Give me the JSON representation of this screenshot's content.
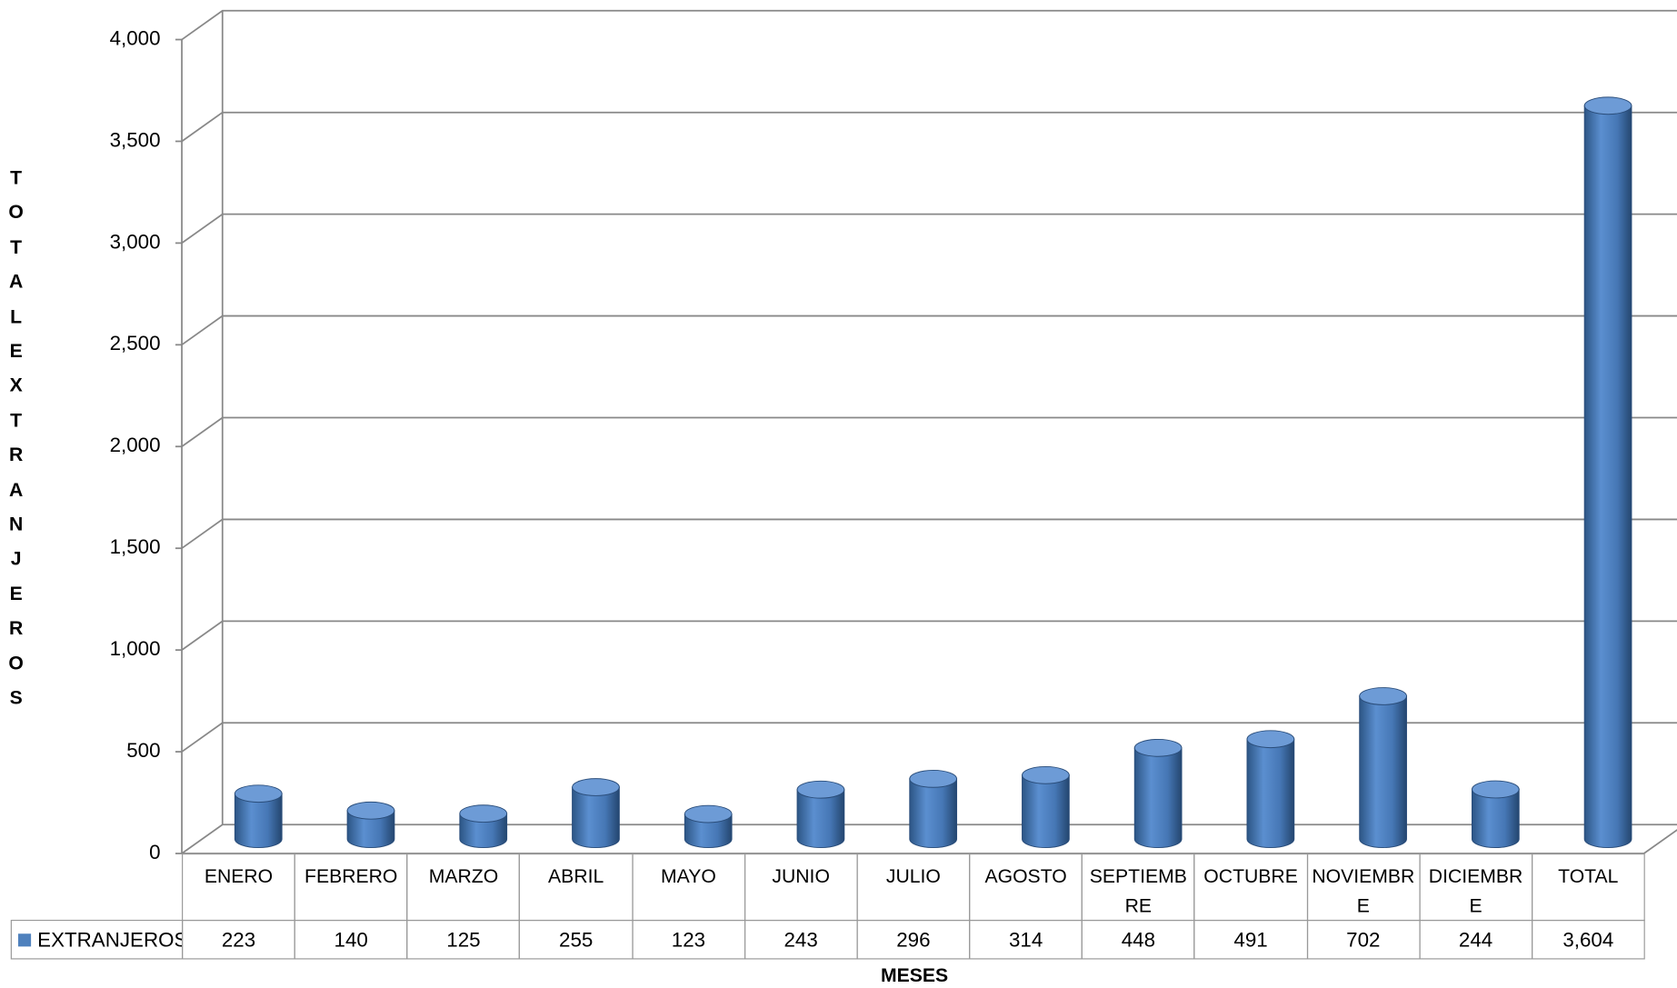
{
  "chart_data": {
    "type": "bar",
    "y_label": "TOTAL EXTRANJEROS",
    "x_label": "MESES",
    "categories": [
      "ENERO",
      "FEBRERO",
      "MARZO",
      "ABRIL",
      "MAYO",
      "JUNIO",
      "JULIO",
      "AGOSTO",
      "SEPTIEMBRE",
      "OCTUBRE",
      "NOVIEMBRE",
      "DICIEMBRE",
      "TOTAL"
    ],
    "series": [
      {
        "name": "EXTRANJEROS",
        "color": "#4f81bd",
        "values": [
          223,
          140,
          125,
          255,
          123,
          243,
          296,
          314,
          448,
          491,
          702,
          244,
          3604
        ],
        "value_labels": [
          "223",
          "140",
          "125",
          "255",
          "123",
          "243",
          "296",
          "314",
          "448",
          "491",
          "702",
          "244",
          "3,604"
        ]
      }
    ],
    "ylim": [
      0,
      4000
    ],
    "yticks": [
      0,
      500,
      {
        "value": 1000,
        "label": "1,000"
      },
      {
        "value": 1500,
        "label": "1,500"
      },
      {
        "value": 2000,
        "label": "2,000"
      },
      {
        "value": 2500,
        "label": "2,500"
      },
      {
        "value": 3000,
        "label": "3,000"
      },
      {
        "value": 3500,
        "label": "3,500"
      },
      {
        "value": 4000,
        "label": "4,000"
      }
    ],
    "grid": true
  }
}
